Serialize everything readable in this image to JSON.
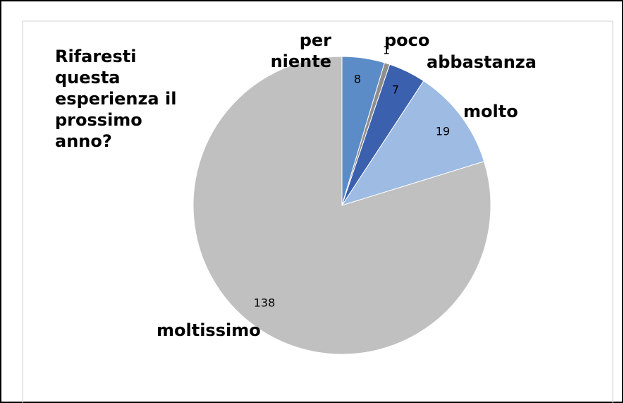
{
  "chart_data": {
    "type": "pie",
    "title": "Rifaresti questa esperienza il prossimo anno?",
    "categories": [
      "per niente",
      "poco",
      "abbastanza",
      "molto",
      "moltissimo"
    ],
    "values": [
      8,
      1,
      7,
      19,
      138
    ],
    "colors": [
      "#5b8cc7",
      "#8e8e8e",
      "#3b60ae",
      "#9dbbe3",
      "#c0c0c0"
    ]
  }
}
